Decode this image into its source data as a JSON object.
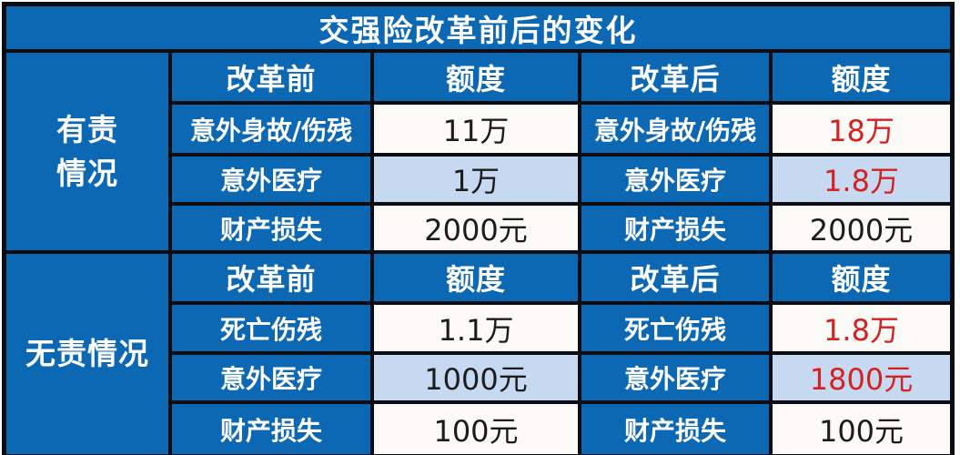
{
  "title": "交强险改革前后的变化",
  "colors": {
    "table_blue": "#0d68b4",
    "shade_blue": "#c7d9f0",
    "cell_white": "#fbfaf6",
    "highlight_red": "#d42121",
    "grid_black": "#0b0d12",
    "text_white": "#ffffff",
    "value_black": "#1c1c1c"
  },
  "sections": [
    {
      "category_lines": [
        "有责",
        "情况"
      ],
      "header": {
        "before": "改革前",
        "amount_before": "额度",
        "after": "改革后",
        "amount_after": "额度"
      },
      "rows": [
        {
          "label": "意外身故/伤残",
          "before": "11万",
          "after": "18万",
          "after_highlight": true,
          "shaded": false
        },
        {
          "label": "意外医疗",
          "before": "1万",
          "after": "1.8万",
          "after_highlight": true,
          "shaded": true
        },
        {
          "label": "财产损失",
          "before": "2000元",
          "after": "2000元",
          "after_highlight": false,
          "shaded": false
        }
      ]
    },
    {
      "category_lines": [
        "无责情况"
      ],
      "header": {
        "before": "改革前",
        "amount_before": "额度",
        "after": "改革后",
        "amount_after": "额度"
      },
      "rows": [
        {
          "label": "死亡伤残",
          "before": "1.1万",
          "after": "1.8万",
          "after_highlight": true,
          "shaded": false
        },
        {
          "label": "意外医疗",
          "before": "1000元",
          "after": "1800元",
          "after_highlight": true,
          "shaded": true
        },
        {
          "label": "财产损失",
          "before": "100元",
          "after": "100元",
          "after_highlight": false,
          "shaded": false
        }
      ]
    }
  ]
}
